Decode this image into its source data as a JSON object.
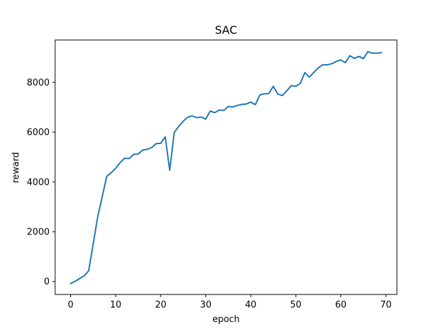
{
  "chart_data": {
    "type": "line",
    "title": "SAC",
    "xlabel": "epoch",
    "ylabel": "reward",
    "xlim": [
      -3.45,
      72.45
    ],
    "ylim": [
      -520,
      9700
    ],
    "xticks": [
      0,
      10,
      20,
      30,
      40,
      50,
      60,
      70
    ],
    "yticks": [
      0,
      2000,
      4000,
      6000,
      8000
    ],
    "grid": false,
    "legend": "none",
    "series": [
      {
        "color": "#1f77b4",
        "x": [
          0,
          1,
          2,
          3,
          4,
          5,
          6,
          7,
          8,
          9,
          10,
          11,
          12,
          13,
          14,
          15,
          16,
          17,
          18,
          19,
          20,
          21,
          22,
          23,
          24,
          25,
          26,
          27,
          28,
          29,
          30,
          31,
          32,
          33,
          34,
          35,
          36,
          37,
          38,
          39,
          40,
          41,
          42,
          43,
          44,
          45,
          46,
          47,
          48,
          49,
          50,
          51,
          52,
          53,
          54,
          55,
          56,
          57,
          58,
          59,
          60,
          61,
          62,
          63,
          64,
          65,
          66,
          67,
          68,
          69
        ],
        "values": [
          -80,
          10,
          120,
          230,
          430,
          1500,
          2600,
          3400,
          4220,
          4370,
          4550,
          4780,
          4950,
          4940,
          5110,
          5120,
          5280,
          5310,
          5380,
          5540,
          5550,
          5810,
          4470,
          5990,
          6230,
          6440,
          6600,
          6650,
          6580,
          6610,
          6520,
          6850,
          6780,
          6890,
          6870,
          7030,
          7010,
          7070,
          7110,
          7130,
          7210,
          7100,
          7490,
          7540,
          7550,
          7840,
          7530,
          7470,
          7660,
          7870,
          7840,
          7960,
          8390,
          8210,
          8400,
          8580,
          8710,
          8700,
          8750,
          8840,
          8900,
          8790,
          9070,
          8960,
          9040,
          8950,
          9230,
          9170,
          9170,
          9190
        ]
      }
    ]
  }
}
